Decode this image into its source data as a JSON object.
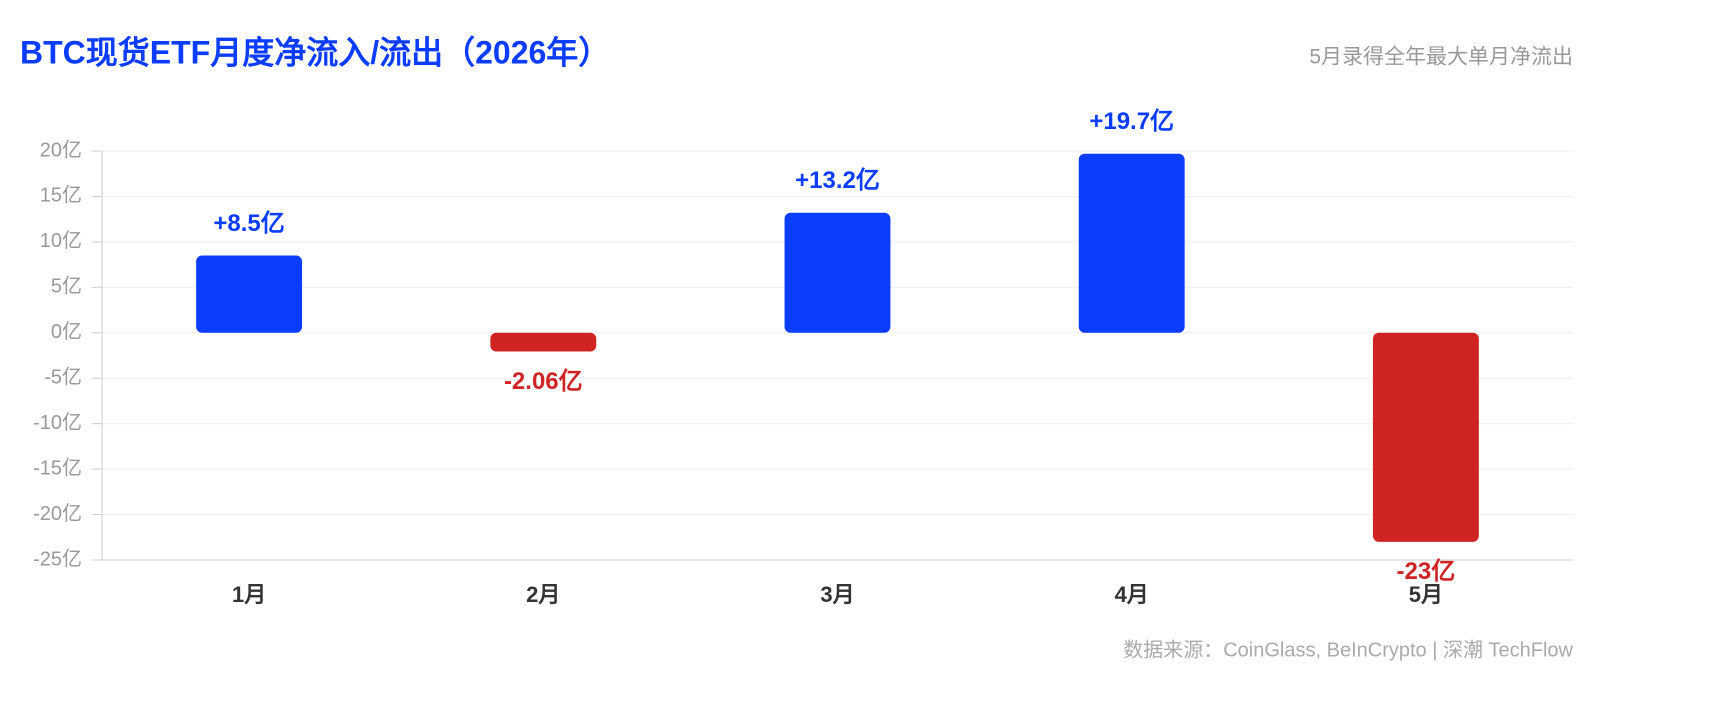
{
  "chart_data": {
    "type": "bar",
    "title": "BTC现货ETF月度净流入/流出（2026年）",
    "subtitle": "5月录得全年最大单月净流出",
    "source": "数据来源：CoinGlass, BeInCrypto | 深潮 TechFlow",
    "categories": [
      "1月",
      "2月",
      "3月",
      "4月",
      "5月"
    ],
    "values": [
      8.5,
      -2.06,
      13.2,
      19.7,
      -23
    ],
    "value_labels": [
      "+8.5亿",
      "-2.06亿",
      "+13.2亿",
      "+19.7亿",
      "-23亿"
    ],
    "positive_color": "#0a3dff",
    "negative_color": "#d02424",
    "ylim": [
      -25,
      20
    ],
    "yticks": [
      {
        "value": 20,
        "label": "20亿"
      },
      {
        "value": 15,
        "label": "15亿"
      },
      {
        "value": 10,
        "label": "10亿"
      },
      {
        "value": 5,
        "label": "5亿"
      },
      {
        "value": 0,
        "label": "0亿"
      },
      {
        "value": -5,
        "label": "-5亿"
      },
      {
        "value": -10,
        "label": "-10亿"
      },
      {
        "value": -15,
        "label": "-15亿"
      },
      {
        "value": -20,
        "label": "-20亿"
      },
      {
        "value": -25,
        "label": "-25亿"
      }
    ],
    "grid": true
  }
}
